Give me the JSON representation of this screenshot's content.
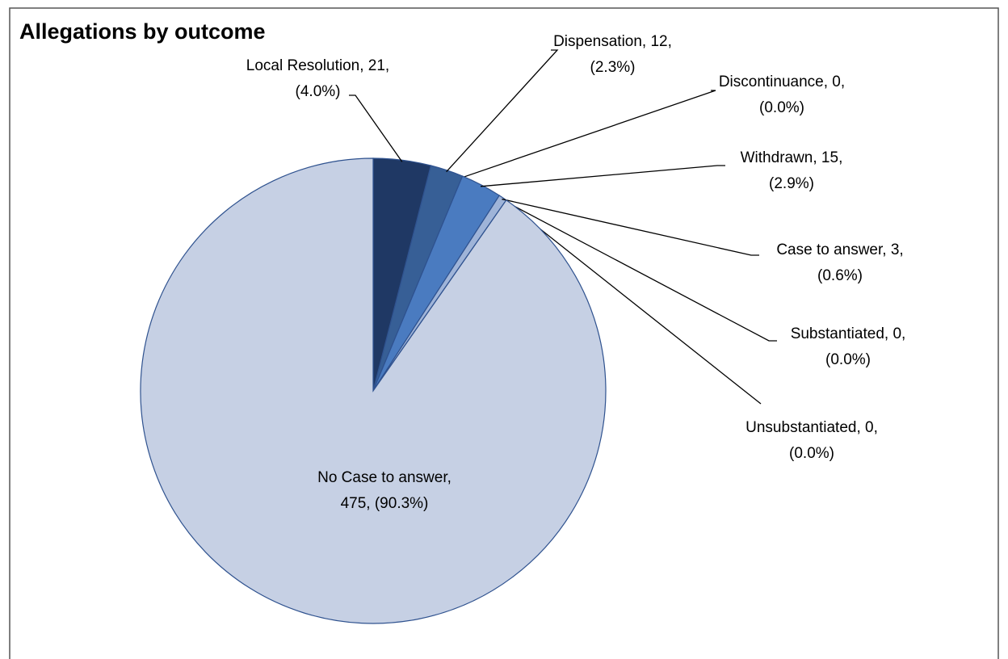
{
  "chart_data": {
    "type": "pie",
    "title": "Allegations by outcome",
    "values": [
      21,
      12,
      0,
      15,
      3,
      0,
      0,
      475
    ],
    "value_labels": [
      "Local Resolution, 21, (4.0%)",
      "Dispensation, 12, (2.3%)",
      "Discontinuance, 0, (0.0%)",
      "Withdrawn, 15, (2.9%)",
      "Case to answer, 3, (0.6%)",
      "Substantiated, 0, (0.0%)",
      "Unsubstantiated, 0, (0.0%)",
      "No Case to answer, 475, (90.3%)"
    ],
    "colors": [
      "#1f3864",
      "#375f96",
      "#2e5597",
      "#4a7bc0",
      "#9fb4d8",
      "#8ea9db",
      "#b4c6e7",
      "#c6d0e4"
    ]
  }
}
